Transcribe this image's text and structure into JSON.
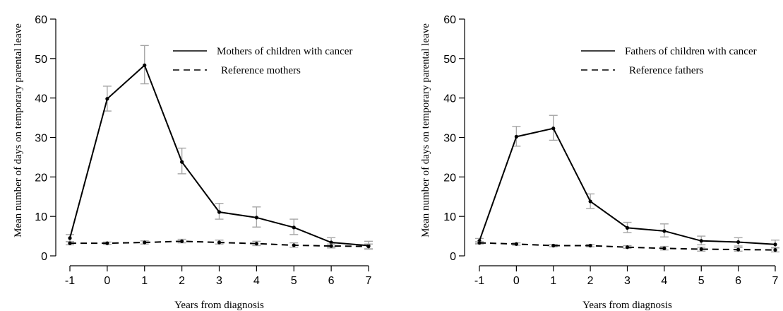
{
  "chart_data": [
    {
      "type": "line",
      "title": "",
      "xlabel": "Years from diagnosis",
      "ylabel": "Mean number of days on temporary parental leave",
      "x": [
        -1,
        0,
        1,
        2,
        3,
        4,
        5,
        6,
        7
      ],
      "xlim": [
        -1,
        7
      ],
      "ylim": [
        0,
        60
      ],
      "yticks": [
        0,
        10,
        20,
        30,
        40,
        50,
        60
      ],
      "grid": false,
      "legend_position": "top-right",
      "series": [
        {
          "name": "Mothers of children with cancer",
          "style": "solid",
          "values": [
            4.5,
            39.8,
            48.3,
            23.8,
            11.1,
            9.7,
            7.2,
            3.4,
            2.6
          ],
          "err_low": [
            3.6,
            36.7,
            43.6,
            20.8,
            9.3,
            7.3,
            5.4,
            2.3,
            1.7
          ],
          "err_high": [
            5.4,
            43.0,
            53.3,
            27.3,
            13.3,
            12.4,
            9.3,
            4.6,
            3.7
          ]
        },
        {
          "name": "Reference mothers",
          "style": "dashed",
          "values": [
            3.2,
            3.2,
            3.4,
            3.7,
            3.4,
            3.1,
            2.7,
            2.5,
            2.4
          ],
          "err_low": [
            2.8,
            2.9,
            3.0,
            3.3,
            3.0,
            2.6,
            2.2,
            2.0,
            1.8
          ],
          "err_high": [
            3.6,
            3.5,
            3.8,
            4.2,
            4.0,
            3.7,
            3.3,
            3.0,
            3.0
          ]
        }
      ]
    },
    {
      "type": "line",
      "title": "",
      "xlabel": "Years from diagnosis",
      "ylabel": "Mean number of days on temporary parental leave",
      "x": [
        -1,
        0,
        1,
        2,
        3,
        4,
        5,
        6,
        7
      ],
      "xlim": [
        -1,
        7
      ],
      "ylim": [
        0,
        60
      ],
      "yticks": [
        0,
        10,
        20,
        30,
        40,
        50,
        60
      ],
      "grid": false,
      "legend_position": "top-right",
      "series": [
        {
          "name": "Fathers of children with cancer",
          "style": "solid",
          "values": [
            3.8,
            30.2,
            32.3,
            13.8,
            7.1,
            6.3,
            3.8,
            3.5,
            2.9
          ],
          "err_low": [
            3.2,
            27.8,
            29.3,
            12.0,
            5.9,
            4.8,
            2.8,
            2.5,
            2.0
          ],
          "err_high": [
            4.4,
            32.8,
            35.6,
            15.7,
            8.5,
            8.1,
            5.0,
            4.6,
            4.0
          ]
        },
        {
          "name": "Reference fathers",
          "style": "dashed",
          "values": [
            3.3,
            3.0,
            2.6,
            2.6,
            2.2,
            1.9,
            1.7,
            1.6,
            1.5
          ],
          "err_low": [
            3.0,
            2.7,
            2.3,
            2.3,
            1.9,
            1.5,
            1.2,
            1.2,
            1.0
          ],
          "err_high": [
            3.6,
            3.3,
            2.9,
            2.9,
            2.6,
            2.4,
            2.2,
            2.1,
            2.1
          ]
        }
      ]
    }
  ],
  "colors": {
    "line": "#000000",
    "errorbar": "#a6a6a6",
    "axis": "#000000"
  }
}
